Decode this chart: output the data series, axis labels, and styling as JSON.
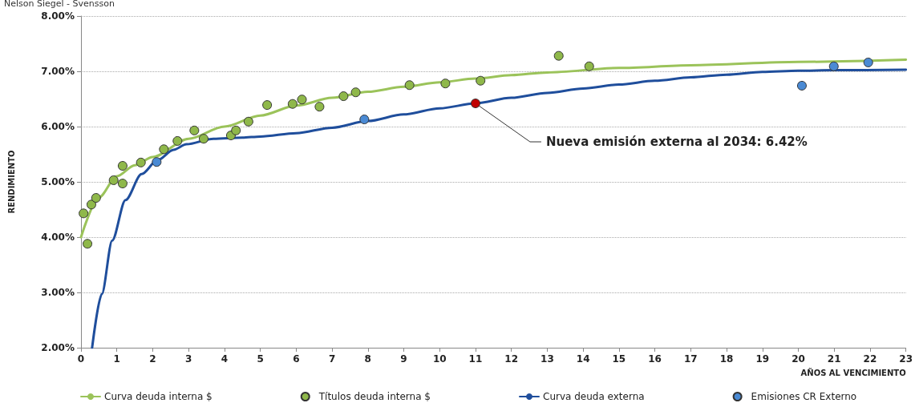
{
  "chart_data": {
    "type": "scatter",
    "subtitle": "Nelson Siegel - Svensson",
    "xlabel": "AÑOS AL VENCIMIENTO",
    "ylabel": "RENDIMIENTO",
    "xlim": [
      0,
      23
    ],
    "xticks": [
      0,
      1,
      2,
      3,
      4,
      5,
      6,
      7,
      8,
      9,
      10,
      11,
      12,
      13,
      14,
      15,
      16,
      17,
      18,
      19,
      20,
      21,
      22,
      23
    ],
    "ylim": [
      2,
      8
    ],
    "yticks": [
      {
        "value": 2,
        "label": "2.00%"
      },
      {
        "value": 3,
        "label": "3.00%"
      },
      {
        "value": 4,
        "label": "4.00%"
      },
      {
        "value": 5,
        "label": "5.00%"
      },
      {
        "value": 6,
        "label": "6.00%"
      },
      {
        "value": 7,
        "label": "7.00%"
      },
      {
        "value": 8,
        "label": "8.00%"
      }
    ],
    "grid": "y",
    "legend": "bottom",
    "series": [
      {
        "name": "Curva deuda interna $",
        "type": "line",
        "marker": "none",
        "color": "#9bc35a",
        "x": [
          0,
          0.5,
          1,
          1.5,
          2,
          3,
          4,
          5,
          6,
          7,
          8,
          9,
          10,
          11,
          12,
          13,
          15,
          17,
          20,
          23
        ],
        "values": [
          4.0,
          4.72,
          5.1,
          5.3,
          5.45,
          5.78,
          6.0,
          6.2,
          6.38,
          6.52,
          6.63,
          6.72,
          6.8,
          6.87,
          6.93,
          6.98,
          7.06,
          7.11,
          7.17,
          7.21
        ]
      },
      {
        "name": "Títulos deuda interna $",
        "marker": "circle",
        "color": "#8fb84a",
        "x": [
          0.07,
          0.18,
          0.29,
          0.42,
          0.91,
          1.16,
          1.16,
          1.67,
          2.31,
          2.69,
          3.16,
          3.42,
          4.18,
          4.32,
          4.67,
          5.19,
          5.9,
          6.16,
          6.65,
          7.32,
          7.66,
          9.16,
          10.16,
          11.14,
          13.32,
          14.17
        ],
        "values": [
          4.43,
          3.88,
          4.59,
          4.71,
          5.03,
          5.29,
          4.97,
          5.35,
          5.59,
          5.74,
          5.93,
          5.78,
          5.84,
          5.93,
          6.09,
          6.39,
          6.41,
          6.49,
          6.36,
          6.55,
          6.62,
          6.75,
          6.78,
          6.83,
          7.28,
          7.09
        ]
      },
      {
        "name": "Curva deuda externa",
        "type": "line",
        "marker": "none",
        "color": "#1f4e9c",
        "x": [
          0.31,
          0.58,
          0.87,
          1.24,
          1.69,
          2.13,
          2.58,
          2.94,
          3.69,
          4.5,
          5,
          6,
          7,
          8,
          9,
          10,
          11,
          12,
          13,
          14,
          15,
          16,
          17,
          18,
          19,
          20,
          21,
          23
        ],
        "values": [
          2.0,
          2.97,
          3.94,
          4.67,
          5.14,
          5.39,
          5.58,
          5.68,
          5.78,
          5.8,
          5.82,
          5.88,
          5.98,
          6.1,
          6.22,
          6.33,
          6.42,
          6.52,
          6.61,
          6.69,
          6.76,
          6.83,
          6.89,
          6.94,
          6.99,
          7.01,
          7.02,
          7.03
        ]
      },
      {
        "name": "Emisiones CR Externo",
        "marker": "circle",
        "color": "#4a8ad4",
        "x": [
          2.11,
          7.9,
          20.1,
          20.99,
          21.95
        ],
        "values": [
          5.36,
          6.13,
          6.74,
          7.09,
          7.16
        ]
      },
      {
        "marker": "circle",
        "color": "#c00000",
        "x": [
          11
        ],
        "values": [
          6.42
        ]
      }
    ],
    "annotations": [
      {
        "text": "Nueva emisión externa al 2034: 6.42%",
        "x": 11,
        "y": 6.42
      }
    ]
  }
}
